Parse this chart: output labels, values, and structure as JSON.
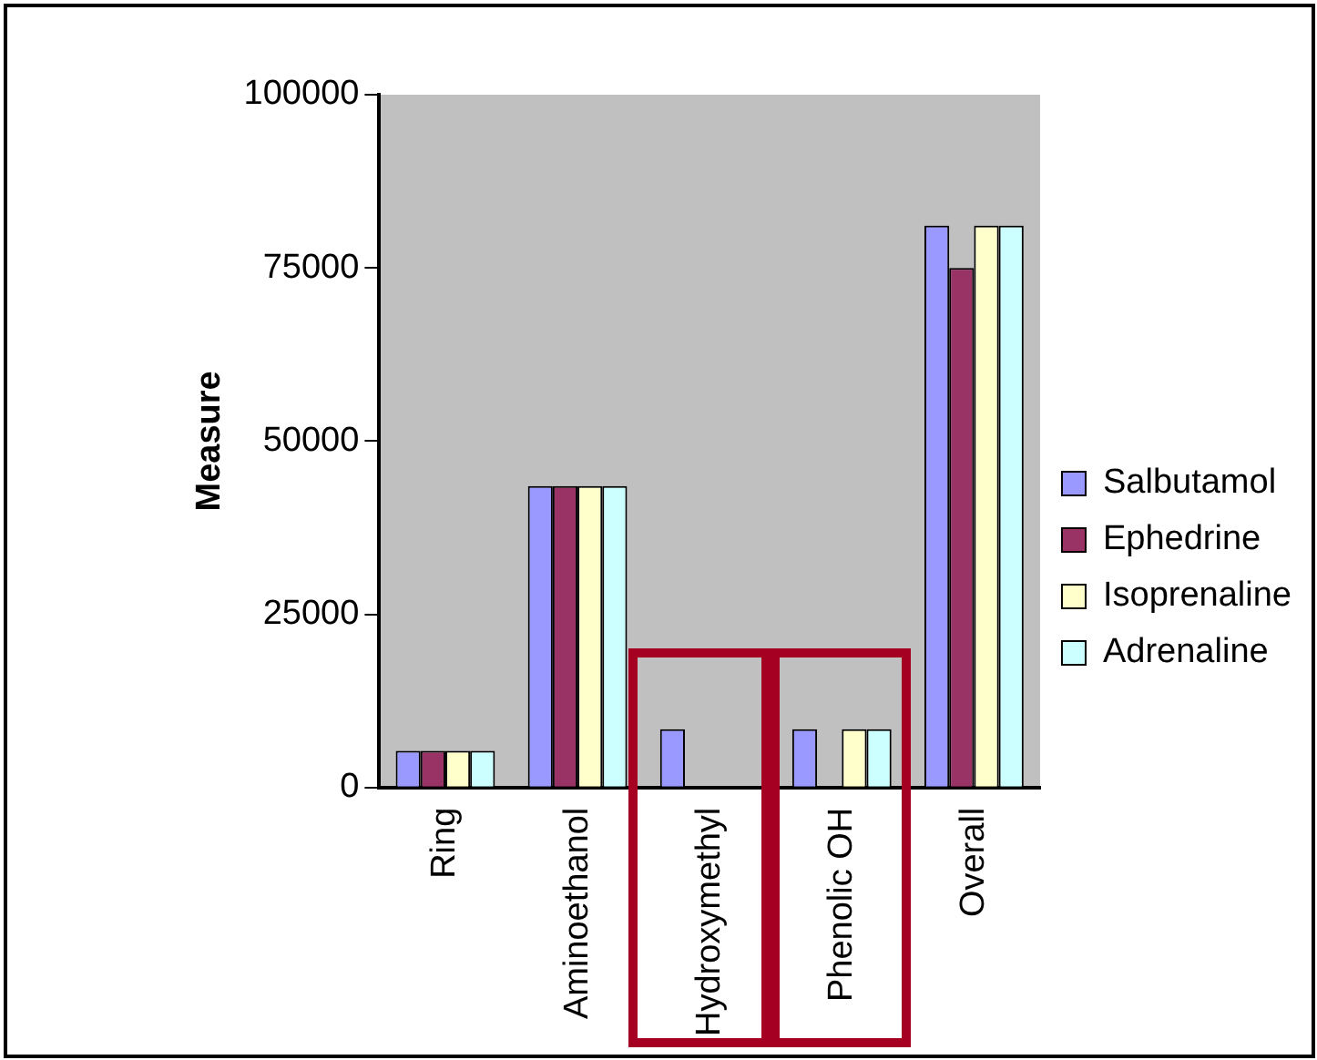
{
  "chart_data": {
    "type": "bar",
    "ylabel": "Measure",
    "categories": [
      "Ring",
      "Aminoethanol",
      "Hydroxymethyl",
      "Phenolic OH",
      "Overall"
    ],
    "series": [
      {
        "name": "Salbutamol",
        "color": "#9999ff",
        "values": [
          5300,
          43500,
          8400,
          8400,
          81100
        ]
      },
      {
        "name": "Ephedrine",
        "color": "#993366",
        "values": [
          5300,
          43500,
          null,
          null,
          75000
        ]
      },
      {
        "name": "Isoprenaline",
        "color": "#ffffcc",
        "values": [
          5300,
          43500,
          null,
          8400,
          81100
        ]
      },
      {
        "name": "Adrenaline",
        "color": "#ccffff",
        "values": [
          5300,
          43500,
          null,
          8400,
          81100
        ]
      }
    ],
    "ylim": [
      0,
      100000
    ],
    "yticks": [
      0,
      25000,
      50000,
      75000,
      100000
    ],
    "grid": false,
    "legend": "right"
  }
}
